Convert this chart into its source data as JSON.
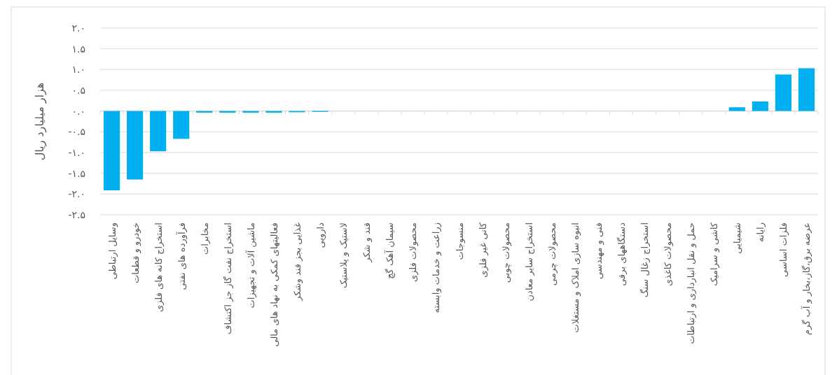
{
  "chart_data": {
    "type": "bar",
    "ylabel": "هزار میلیارد ریال",
    "categories": [
      "وسایل ارتباطی",
      "خودرو و قطعات",
      "استخراج کانه های فلزی",
      "فرآورده های نفتی",
      "مخابرات",
      "استخراج نفت گاز جز اکتشاف",
      "ماشین آلات و تجهیزات",
      "فعالیتهای کمکی به نهاد های مالی",
      "غذایی بجز قند وشکر",
      "دارویی",
      "لاستیک و پلاستیک",
      "قند و شکر",
      "سیمان آهک گچ",
      "محصولات فلزی",
      "زراعت و خدمات وابسته",
      "منسوجات",
      "کانی غیر فلزی",
      "محصولات چوبی",
      "استخراج سایر معادن",
      "محصولات چرمی",
      "انبوه سازی املاک و مستغلات",
      "فنی و مهندسی",
      "دستگاههای برقی",
      "استخراج زغال سنگ",
      "محصولات کاغذی",
      "حمل و نقل انبارداری و ارتباطات",
      "کاشی و سرامیک",
      "شیمیایی",
      "رایانه",
      "فلزات اساسی",
      "عرضه برق،گاز،بخار و آب گرم"
    ],
    "values": [
      -1.91,
      -1.65,
      -0.97,
      -0.67,
      -0.04,
      -0.04,
      -0.04,
      -0.04,
      -0.03,
      -0.02,
      null,
      0,
      0,
      0,
      0,
      0,
      0,
      0,
      0,
      0,
      0,
      0,
      0,
      0,
      0,
      0,
      0,
      0.09,
      0.23,
      0.88,
      1.03
    ],
    "color": "#00b0f0",
    "ylim": [
      -2.5,
      2.0
    ],
    "yticks": [
      {
        "value": 2.0,
        "label": "۲.۰"
      },
      {
        "value": 1.5,
        "label": "۱.۵"
      },
      {
        "value": 1.0,
        "label": "۱.۰"
      },
      {
        "value": 0.5,
        "label": "۰.۵"
      },
      {
        "value": 0,
        "label": "۰.۰"
      },
      {
        "value": -0.5,
        "label": "-۰.۵"
      },
      {
        "value": -1.0,
        "label": "-۱.۰"
      },
      {
        "value": -1.5,
        "label": "-۱.۵"
      },
      {
        "value": -2.0,
        "label": "-۲.۰"
      },
      {
        "value": -2.5,
        "label": "-۲.۵"
      }
    ],
    "grid": "y"
  }
}
